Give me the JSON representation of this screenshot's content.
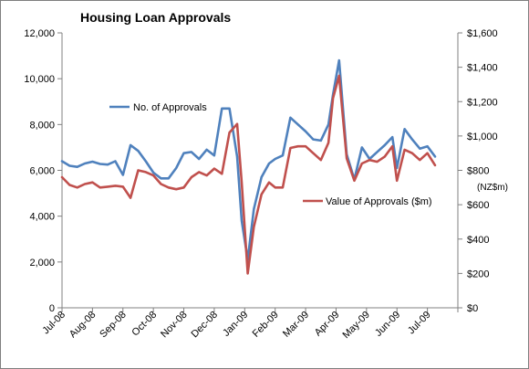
{
  "chart_data": {
    "type": "line",
    "title": "Housing Loan Approvals",
    "xlabel": "",
    "ylabel": "",
    "y2label": "(NZ$m)",
    "ylim": [
      0,
      12000
    ],
    "y2lim": [
      0,
      1600
    ],
    "yticks": [
      "0",
      "2,000",
      "4,000",
      "6,000",
      "8,000",
      "10,000",
      "12,000"
    ],
    "y2ticks": [
      "$0",
      "$200",
      "$400",
      "$600",
      "$800",
      "$1,000",
      "$1,200",
      "$1,400",
      "$1,600"
    ],
    "categories": [
      "Jul-08",
      "Aug-08",
      "Sep-08",
      "Oct-08",
      "Nov-08",
      "Dec-08",
      "Jan-09",
      "Feb-09",
      "Mar-09",
      "Apr-09",
      "May-09",
      "Jun-09",
      "Jul-09"
    ],
    "grid": false,
    "x": [
      0,
      0.25,
      0.5,
      0.75,
      1,
      1.25,
      1.5,
      1.75,
      2,
      2.25,
      2.5,
      2.75,
      3,
      3.25,
      3.5,
      3.75,
      4,
      4.25,
      4.5,
      4.75,
      5,
      5.25,
      5.5,
      5.75,
      5.9,
      6.1,
      6.3,
      6.55,
      6.8,
      7,
      7.25,
      7.5,
      7.75,
      8,
      8.25,
      8.5,
      8.75,
      8.9,
      9.1,
      9.35,
      9.6,
      9.85,
      10.1,
      10.35,
      10.6,
      10.85,
      11,
      11.25,
      11.5,
      11.75,
      12,
      12.25
    ],
    "series": [
      {
        "name": "No. of Approvals",
        "axis": "left",
        "color": "#4f81bd",
        "values": [
          6400,
          6200,
          6150,
          6300,
          6380,
          6280,
          6250,
          6400,
          5800,
          7100,
          6850,
          6400,
          5900,
          5650,
          5650,
          6100,
          6750,
          6800,
          6500,
          6900,
          6650,
          8700,
          8700,
          6600,
          3800,
          2100,
          4300,
          5700,
          6300,
          6500,
          6650,
          8300,
          8000,
          7700,
          7350,
          7300,
          8000,
          9300,
          10800,
          6700,
          5600,
          7000,
          6500,
          6800,
          7100,
          7450,
          6100,
          7800,
          7350,
          6950,
          7050,
          6600
        ]
      },
      {
        "name": "Value of Approvals ($m)",
        "axis": "right",
        "color": "#c0504d",
        "values": [
          760,
          715,
          700,
          720,
          730,
          700,
          705,
          710,
          705,
          640,
          800,
          790,
          770,
          720,
          700,
          690,
          700,
          760,
          790,
          770,
          810,
          780,
          1020,
          1070,
          730,
          200,
          470,
          660,
          730,
          700,
          700,
          930,
          940,
          940,
          900,
          860,
          960,
          1220,
          1350,
          870,
          740,
          840,
          860,
          850,
          880,
          940,
          740,
          920,
          900,
          860,
          900,
          830
        ]
      }
    ],
    "legend": [
      "top-left",
      "center-right"
    ]
  }
}
